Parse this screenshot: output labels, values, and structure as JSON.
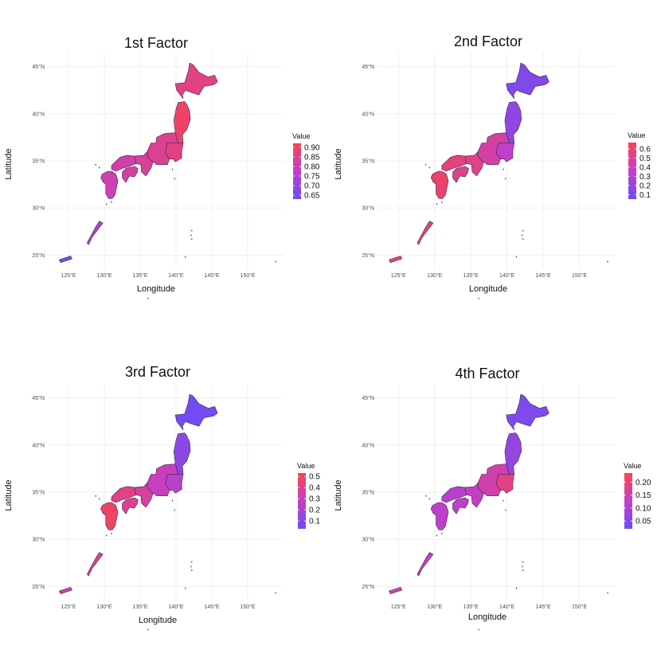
{
  "colors": {
    "low": "#6b4cf6",
    "mid": "#c43fc7",
    "high": "#f8444f",
    "grid": "#ebebeb"
  },
  "chart_data": [
    {
      "type": "heatmap",
      "title": "1st Factor",
      "xlabel": "Longitude",
      "ylabel": "Latitude",
      "xticks": [
        "125°E",
        "130°E",
        "135°E",
        "140°E",
        "145°E",
        "150°E"
      ],
      "yticks": [
        "25°N",
        "30°N",
        "35°N",
        "40°N",
        "45°N"
      ],
      "xlim": [
        122,
        155
      ],
      "ylim": [
        23.5,
        46.5
      ],
      "legend": {
        "title": "Value",
        "labels": [
          "0.90",
          "0.85",
          "0.80",
          "0.75",
          "0.70",
          "0.65"
        ],
        "values": [
          0.9,
          0.85,
          0.8,
          0.75,
          0.7,
          0.65
        ],
        "range": [
          0.63,
          0.92
        ],
        "placement": "right"
      },
      "grid": true,
      "regions": {
        "hokkaido": 0.86,
        "tohoku": 0.89,
        "kanto": 0.86,
        "chubu": 0.84,
        "kinki": 0.83,
        "chugoku": 0.81,
        "shikoku": 0.82,
        "kyushu": 0.8,
        "nansei": 0.74,
        "sakishima": 0.64
      }
    },
    {
      "type": "heatmap",
      "title": "2nd Factor",
      "xlabel": "Longitude",
      "ylabel": "Latitude",
      "xticks": [
        "125°E",
        "130°E",
        "135°E",
        "140°E",
        "145°E",
        "150°E"
      ],
      "yticks": [
        "25°N",
        "30°N",
        "35°N",
        "40°N",
        "45°N"
      ],
      "xlim": [
        122,
        155
      ],
      "ylim": [
        23.5,
        46.5
      ],
      "legend": {
        "title": "Value",
        "labels": [
          "0.6",
          "0.5",
          "0.4",
          "0.3",
          "0.2",
          "0.1"
        ],
        "values": [
          0.6,
          0.5,
          0.4,
          0.3,
          0.2,
          0.1
        ],
        "range": [
          0.05,
          0.67
        ],
        "placement": "right"
      },
      "grid": true,
      "regions": {
        "hokkaido": 0.12,
        "tohoku": 0.18,
        "kanto": 0.35,
        "chubu": 0.45,
        "kinki": 0.52,
        "chugoku": 0.55,
        "shikoku": 0.52,
        "kyushu": 0.6,
        "nansei": 0.58,
        "sakishima": 0.62
      }
    },
    {
      "type": "heatmap",
      "title": "3rd Factor",
      "xlabel": "Longitude",
      "ylabel": "Latitude",
      "xticks": [
        "125°E",
        "130°E",
        "135°E",
        "140°E",
        "145°E",
        "150°E"
      ],
      "yticks": [
        "25°N",
        "30°N",
        "35°N",
        "40°N",
        "45°N"
      ],
      "xlim": [
        122,
        155
      ],
      "ylim": [
        23.5,
        46.5
      ],
      "legend": {
        "title": "Value",
        "labels": [
          "0.5",
          "0.4",
          "0.3",
          "0.2",
          "0.1"
        ],
        "values": [
          0.5,
          0.4,
          0.3,
          0.2,
          0.1
        ],
        "range": [
          0.03,
          0.53
        ],
        "placement": "right"
      },
      "grid": true,
      "regions": {
        "hokkaido": 0.05,
        "tohoku": 0.12,
        "kanto": 0.25,
        "chubu": 0.3,
        "kinki": 0.36,
        "chugoku": 0.42,
        "shikoku": 0.4,
        "kyushu": 0.48,
        "nansei": 0.4,
        "sakishima": 0.35
      }
    },
    {
      "type": "heatmap",
      "title": "4th Factor",
      "xlabel": "Longitude",
      "ylabel": "Latitude",
      "xticks": [
        "125°E",
        "130°E",
        "135°E",
        "140°E",
        "145°E",
        "150°E"
      ],
      "yticks": [
        "25°N",
        "30°N",
        "35°N",
        "40°N",
        "45°N"
      ],
      "xlim": [
        122,
        155
      ],
      "ylim": [
        23.5,
        46.5
      ],
      "legend": {
        "title": "Value",
        "labels": [
          "0.20",
          "0.15",
          "0.10",
          "0.05"
        ],
        "values": [
          0.2,
          0.15,
          0.1,
          0.05
        ],
        "range": [
          0.02,
          0.235
        ],
        "placement": "right"
      },
      "grid": true,
      "regions": {
        "hokkaido": 0.04,
        "tohoku": 0.07,
        "kanto": 0.19,
        "chubu": 0.15,
        "kinki": 0.13,
        "chugoku": 0.11,
        "shikoku": 0.12,
        "kyushu": 0.12,
        "nansei": 0.13,
        "sakishima": 0.16
      }
    }
  ]
}
